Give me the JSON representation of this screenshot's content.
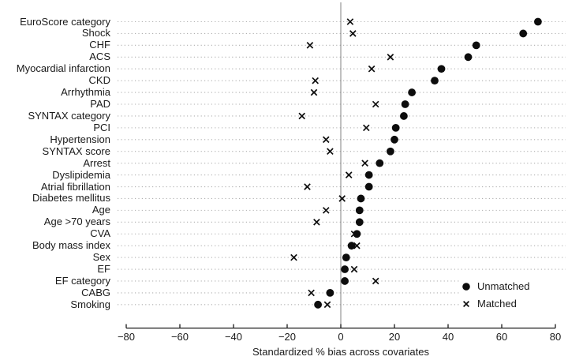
{
  "chart_data": {
    "type": "scatter",
    "title": "",
    "xlabel": "Standardized % bias across covariates",
    "xlim": [
      -80,
      80
    ],
    "x_tick_values": [
      -80,
      -60,
      -40,
      -20,
      0,
      20,
      40,
      60,
      80
    ],
    "x_tick_labels": [
      "−80",
      "−60",
      "−40",
      "−20",
      "0",
      "20",
      "40",
      "60",
      "80"
    ],
    "grid": "horizontal-dotted",
    "reference_line_x": 0,
    "legend_position": "bottom-right",
    "categories": [
      "EuroScore category",
      "Shock",
      "CHF",
      "ACS",
      "Myocardial infarction",
      "CKD",
      "Arrhythmia",
      "PAD",
      "SYNTAX category",
      "PCI",
      "Hypertension",
      "SYNTAX score",
      "Arrest",
      "Dyslipidemia",
      "Atrial fibrillation",
      "Diabetes mellitus",
      "Age",
      "Age >70 years",
      "CVA",
      "Body mass index",
      "Sex",
      "EF",
      "EF category",
      "CABG",
      "Smoking"
    ],
    "series": [
      {
        "name": "Unmatched",
        "marker": "filled-circle",
        "color": "#0d0d0d",
        "values": [
          73.5,
          68,
          50.5,
          47.5,
          37.5,
          35,
          26.5,
          24,
          23.5,
          20.5,
          20,
          18.5,
          14.5,
          10.5,
          10.5,
          7.5,
          7,
          7,
          6,
          4,
          2,
          1.5,
          1.5,
          -4,
          -8.5
        ]
      },
      {
        "name": "Matched",
        "marker": "x",
        "color": "#0d0d0d",
        "values": [
          3.5,
          4.5,
          -11.5,
          18.5,
          11.5,
          -9.5,
          -10,
          13,
          -14.5,
          9.5,
          -5.5,
          -4,
          9,
          3,
          -12.5,
          0.5,
          -5.5,
          -9,
          5,
          6,
          -17.5,
          5,
          13,
          -11,
          -5
        ]
      }
    ]
  },
  "colors": {
    "marker": "#0d0d0d",
    "grid_dots": "#b0b0b0",
    "zero_line": "#8c8c8c",
    "axis": "#1a1a1a",
    "text": "#1a1a1a",
    "background": "#ffffff"
  }
}
